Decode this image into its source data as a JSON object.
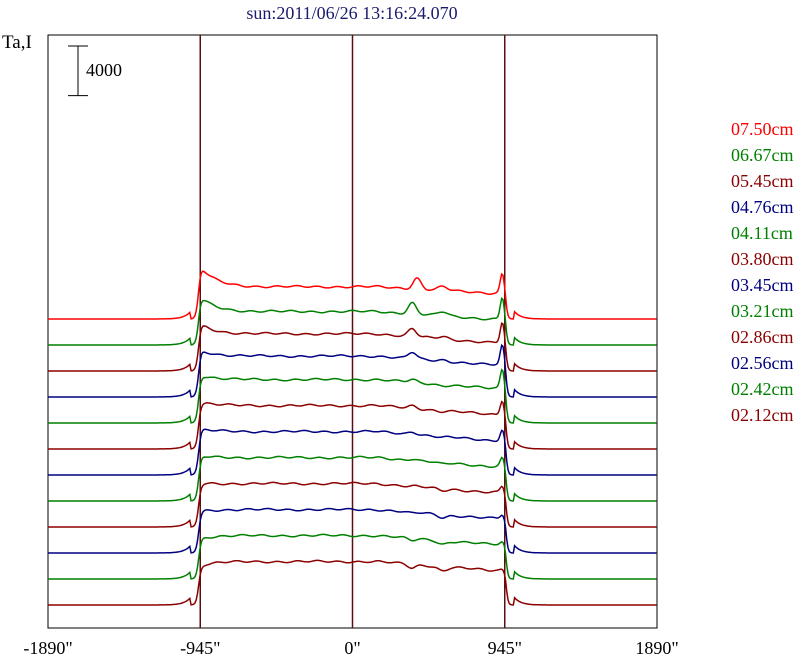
{
  "chart_data": {
    "type": "line",
    "title": "sun:2011/06/26 13:16:24.070",
    "ylabel": "Ta,I",
    "scale_bar": {
      "label": "4000",
      "value": 4000
    },
    "x": {
      "tick_values": [
        -1890,
        -945,
        0,
        945,
        1890
      ],
      "tick_labels": [
        "-1890\"",
        "-945\"",
        "0\"",
        "945\"",
        "1890\""
      ],
      "range": [
        -1890,
        1890
      ],
      "markers": [
        -945,
        0,
        945
      ]
    },
    "series": [
      {
        "name": "07.50cm",
        "color": "#ff0000",
        "baseline": 0,
        "limb": 4300,
        "center": 2600,
        "peak1": 3300,
        "peak1_x": 400,
        "peak2": 3700,
        "shoulder": 2100
      },
      {
        "name": "06.67cm",
        "color": "#008000",
        "baseline": 0,
        "limb": 3900,
        "center": 2700,
        "peak1": 3400,
        "peak1_x": 370,
        "peak2": 3900,
        "shoulder": 2100
      },
      {
        "name": "05.45cm",
        "color": "#8b0000",
        "baseline": 0,
        "limb": 3800,
        "center": 3000,
        "peak1": 3400,
        "peak1_x": 370,
        "peak2": 3950,
        "shoulder": 2300
      },
      {
        "name": "04.76cm",
        "color": "#000080",
        "baseline": 0,
        "limb": 3800,
        "center": 3300,
        "peak1": 3600,
        "peak1_x": 370,
        "peak2": 4200,
        "shoulder": 2600
      },
      {
        "name": "04.11cm",
        "color": "#008000",
        "baseline": 0,
        "limb": 3900,
        "center": 3500,
        "peak1": 3500,
        "peak1_x": 370,
        "peak2": 4400,
        "shoulder": 2800
      },
      {
        "name": "03.80cm",
        "color": "#8b0000",
        "baseline": 0,
        "limb": 3800,
        "center": 3500,
        "peak1": 3500,
        "peak1_x": 370,
        "peak2": 4000,
        "shoulder": 2800
      },
      {
        "name": "03.45cm",
        "color": "#000080",
        "baseline": 0,
        "limb": 3700,
        "center": 3500,
        "peak1": 3500,
        "peak1_x": 370,
        "peak2": 3700,
        "shoulder": 2800
      },
      {
        "name": "03.21cm",
        "color": "#008000",
        "baseline": 0,
        "limb": 3600,
        "center": 3500,
        "peak1": 3400,
        "peak1_x": 370,
        "peak2": 3500,
        "shoulder": 2800
      },
      {
        "name": "02.86cm",
        "color": "#8b0000",
        "baseline": 0,
        "limb": 3500,
        "center": 3500,
        "peak1": 3300,
        "peak1_x": 370,
        "peak2": 3300,
        "shoulder": 2800
      },
      {
        "name": "02.56cm",
        "color": "#000080",
        "baseline": 0,
        "limb": 3400,
        "center": 3500,
        "peak1": 3200,
        "peak1_x": 370,
        "peak2": 3100,
        "shoulder": 2800
      },
      {
        "name": "02.42cm",
        "color": "#008000",
        "baseline": 0,
        "limb": 3300,
        "center": 3500,
        "peak1": 3100,
        "peak1_x": 370,
        "peak2": 3000,
        "shoulder": 2800
      },
      {
        "name": "02.12cm",
        "color": "#8b0000",
        "baseline": 0,
        "limb": 3200,
        "center": 3500,
        "peak1": 3000,
        "peak1_x": 370,
        "peak2": 2900,
        "shoulder": 2800
      }
    ]
  },
  "colors": {
    "marker_line": "#5a1010",
    "axis": "#000000",
    "title": "#1a1a6e"
  }
}
